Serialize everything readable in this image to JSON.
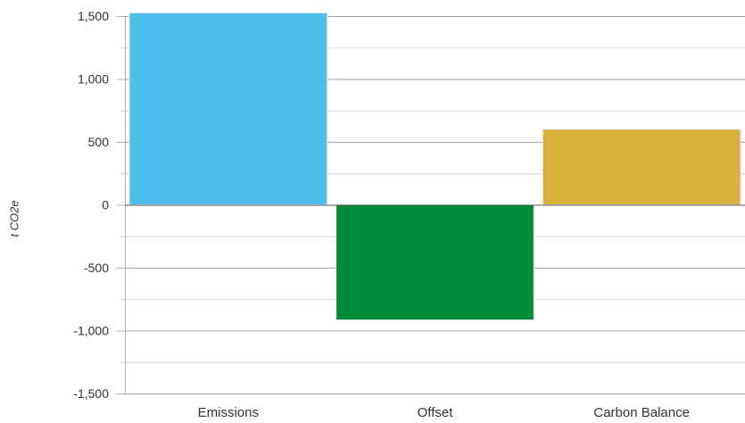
{
  "chart_data": {
    "type": "bar",
    "categories": [
      "Emissions",
      "Offset",
      "Carbon Balance"
    ],
    "values": [
      1525,
      -915,
      600
    ],
    "colors": [
      "#4dbdeb",
      "#008d39",
      "#d9b13b"
    ],
    "ylabel": "t CO2e",
    "ylim": [
      -1500,
      1500
    ],
    "yticks": [
      -1500,
      -1000,
      -500,
      0,
      500,
      1000,
      1500
    ],
    "ytick_labels": [
      "-1,500",
      "-1,000",
      "-500",
      "0",
      "500",
      "1,000",
      "1,500"
    ],
    "minor_gridlines": true,
    "legend": "none"
  }
}
